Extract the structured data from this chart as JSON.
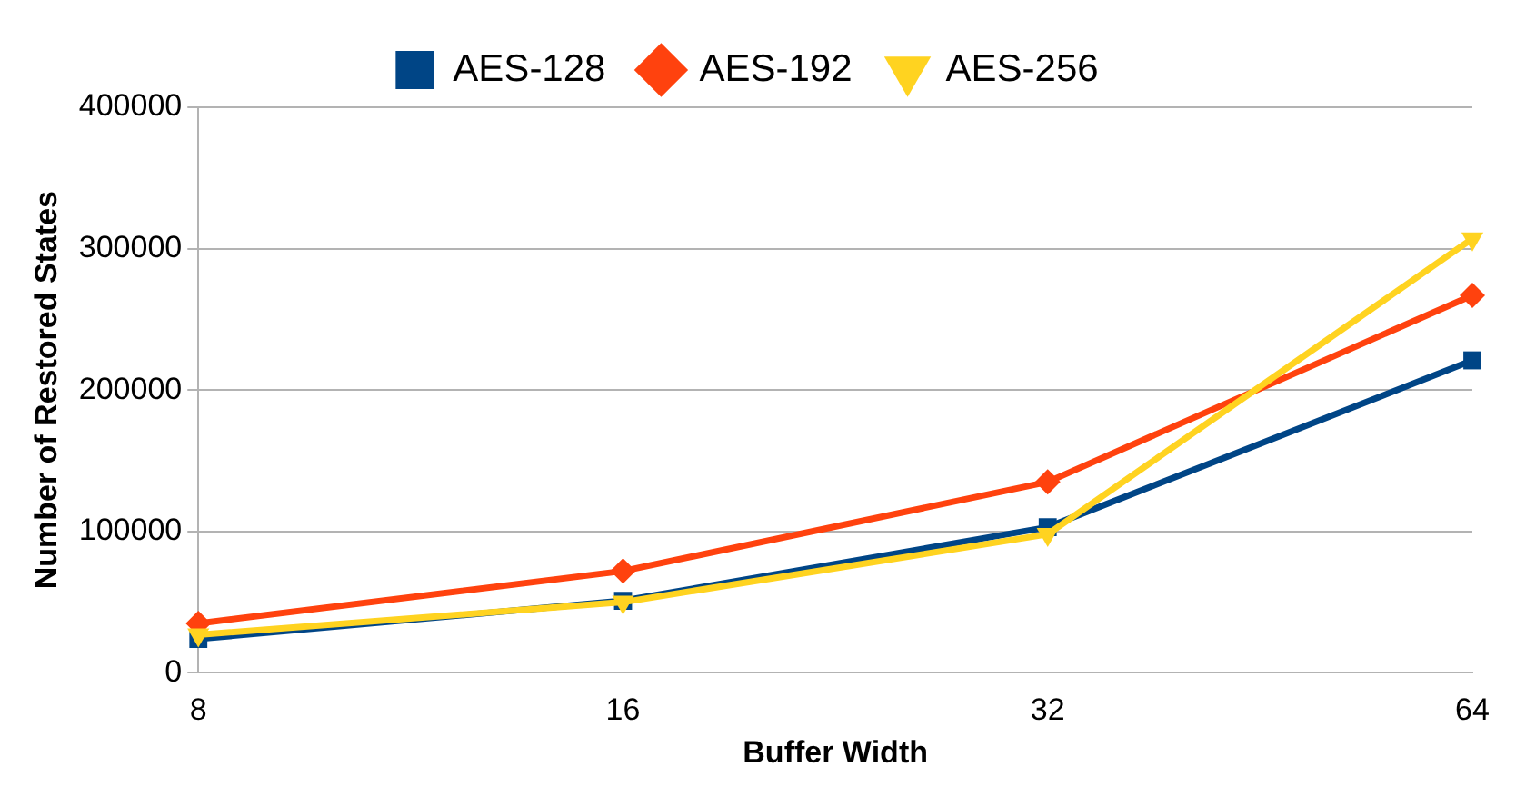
{
  "chart_data": {
    "type": "line",
    "xlabel": "Buffer Width",
    "ylabel": "Number of Restored States",
    "categories": [
      "8",
      "16",
      "32",
      "64"
    ],
    "series": [
      {
        "name": "AES-128",
        "color": "#004586",
        "marker": "square",
        "values": [
          24000,
          51000,
          103000,
          221000
        ]
      },
      {
        "name": "AES-192",
        "color": "#ff420e",
        "marker": "diamond",
        "values": [
          35000,
          72000,
          135000,
          267000
        ]
      },
      {
        "name": "AES-256",
        "color": "#ffd320",
        "marker": "triangle",
        "values": [
          27000,
          50000,
          98000,
          307000
        ]
      }
    ],
    "ylim": [
      0,
      400000
    ],
    "yticks": [
      0,
      100000,
      200000,
      300000,
      400000
    ],
    "grid": "y",
    "legend": "top",
    "line_style": "solid"
  }
}
